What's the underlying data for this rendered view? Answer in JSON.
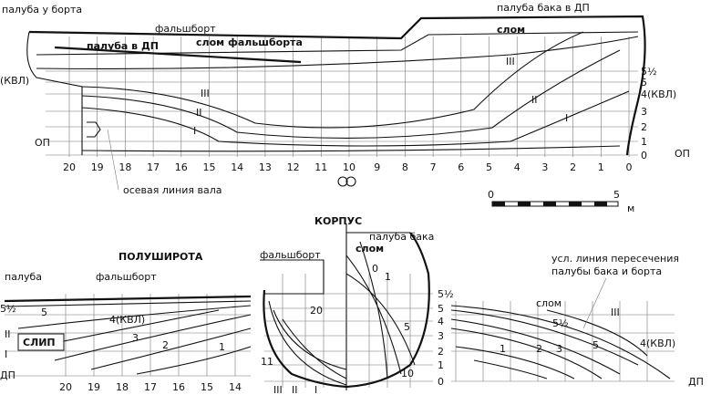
{
  "profile": {
    "deck_at_side": "палуба у борта",
    "bulwark": "фальшборт",
    "forecastle_deck_cl": "палуба бака в ДП",
    "knuckle": "слом",
    "deck_cl": "палуба в ДП",
    "bulwark_knuckle": "слом фальшборта",
    "buttocks": [
      "III",
      "II",
      "I"
    ],
    "waterlines": [
      "5½",
      "5",
      "4(КВЛ)",
      "3",
      "2",
      "1",
      "0"
    ],
    "left_waterline": "(КВЛ)",
    "baseline": "ОП",
    "stations": [
      "20",
      "19",
      "18",
      "17",
      "16",
      "15",
      "14",
      "13",
      "12",
      "11",
      "10",
      "9",
      "8",
      "7",
      "6",
      "5",
      "4",
      "3",
      "2",
      "1",
      "0"
    ],
    "shaft_axis": "осевая линия вала",
    "scale": [
      "0",
      "5",
      "м"
    ]
  },
  "half_breadth": {
    "title": "ПОЛУШИРОТА",
    "deck": "палуба",
    "bulwark": "фальшборт",
    "waterlines": [
      "5",
      "5½",
      "4(КВЛ)",
      "3",
      "2",
      "1"
    ],
    "slip": "СЛИП",
    "buttocks": [
      "II",
      "I"
    ],
    "centerline": "ДП",
    "stations": [
      "20",
      "19",
      "18",
      "17",
      "16",
      "15",
      "14"
    ]
  },
  "body_plan": {
    "title": "КОРПУС",
    "forecastle_deck": "палуба бака",
    "bulwark": "фальшборт",
    "knuckle": "слом",
    "sections": [
      "0",
      "1",
      "20",
      "5",
      "10",
      "11"
    ],
    "buttocks": [
      "III",
      "II",
      "I"
    ],
    "waterlines": [
      "5½",
      "5",
      "4",
      "3",
      "2",
      "1",
      "0"
    ]
  },
  "bow_half_breadth": {
    "note": "усл. линия пересечения\nпалубы бака и борта",
    "knuckle": "слом",
    "buttock": "III",
    "waterlines": [
      "5½",
      "5",
      "4(КВЛ)",
      "1",
      "2",
      "3"
    ],
    "centerline": "ДП"
  }
}
